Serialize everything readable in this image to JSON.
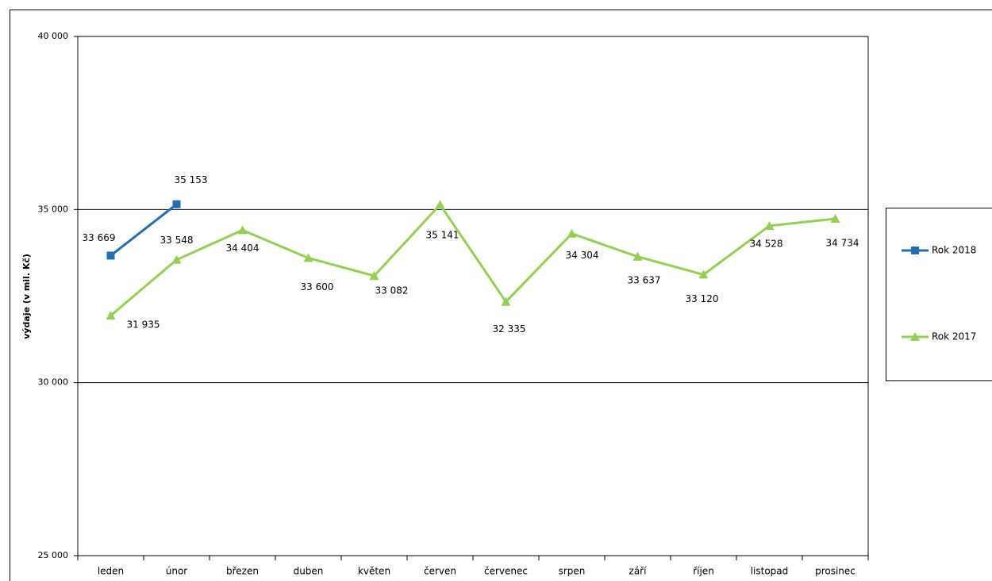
{
  "chart_data": {
    "type": "line",
    "y_label": "výdaje (v mil. Kč)",
    "categories": [
      "leden",
      "únor",
      "březen",
      "duben",
      "květen",
      "červen",
      "červenec",
      "srpen",
      "září",
      "říjen",
      "listopad",
      "prosinec"
    ],
    "series": [
      {
        "name": "Rok 2018",
        "color": "#1f6fb5",
        "marker": "square",
        "values": [
          33669,
          35153,
          null,
          null,
          null,
          null,
          null,
          null,
          null,
          null,
          null,
          null
        ],
        "value_labels": [
          "33 669",
          "35 153",
          null,
          null,
          null,
          null,
          null,
          null,
          null,
          null,
          null,
          null
        ]
      },
      {
        "name": "Rok 2017",
        "color": "#92d050",
        "marker": "triangle",
        "values": [
          31935,
          33548,
          34404,
          33600,
          33082,
          35141,
          32335,
          34304,
          33637,
          33120,
          34528,
          34734
        ],
        "value_labels": [
          "31 935",
          "33 548",
          "34 404",
          "33 600",
          "33 082",
          "35 141",
          "32 335",
          "34 304",
          "33 637",
          "33 120",
          "34 528",
          "34 734"
        ]
      }
    ],
    "ylim": [
      25000,
      40000
    ],
    "yticks": [
      {
        "value": 25000,
        "label": "25 000"
      },
      {
        "value": 30000,
        "label": "30 000"
      },
      {
        "value": 35000,
        "label": "35 000"
      },
      {
        "value": 40000,
        "label": "40 000"
      }
    ],
    "grid": true,
    "legend": "right"
  }
}
